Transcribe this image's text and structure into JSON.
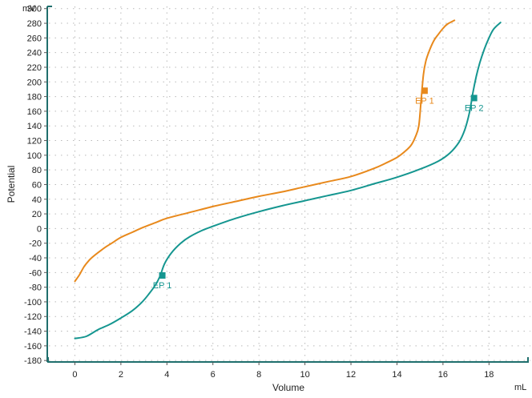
{
  "chart_data": {
    "type": "line",
    "xlabel": "Volume",
    "ylabel": "Potential",
    "x_unit": "mL",
    "y_unit": "mV",
    "xlim": [
      -1.2,
      19.8
    ],
    "ylim": [
      -182,
      303
    ],
    "x_ticks": [
      0,
      2,
      4,
      6,
      8,
      10,
      12,
      14,
      16,
      18
    ],
    "y_ticks": [
      -180,
      -160,
      -140,
      -120,
      -100,
      -80,
      -60,
      -40,
      -20,
      0,
      20,
      40,
      60,
      80,
      100,
      120,
      140,
      160,
      180,
      200,
      220,
      240,
      260,
      280,
      300
    ],
    "grid": true,
    "series": [
      {
        "color": "#e8891c",
        "x": [
          0.0,
          0.2,
          0.4,
          0.6,
          0.8,
          1.0,
          1.3,
          1.6,
          2.0,
          2.5,
          3.0,
          3.5,
          4.0,
          5.0,
          6.0,
          7.0,
          8.0,
          9.0,
          10.0,
          11.0,
          12.0,
          13.0,
          13.5,
          14.0,
          14.3,
          14.6,
          14.8,
          14.95,
          15.05,
          15.15,
          15.25,
          15.4,
          15.6,
          15.8,
          16.0,
          16.2,
          16.5
        ],
        "y": [
          -72,
          -63,
          -52,
          -44,
          -38,
          -33,
          -26,
          -20,
          -12,
          -5,
          2,
          8,
          14,
          22,
          30,
          37,
          44,
          50,
          57,
          64,
          71,
          82,
          89,
          97,
          104,
          113,
          125,
          140,
          175,
          210,
          228,
          242,
          256,
          265,
          273,
          279,
          284
        ]
      },
      {
        "color": "#159690",
        "x": [
          0.0,
          0.5,
          1.0,
          1.5,
          2.0,
          2.5,
          2.9,
          3.2,
          3.5,
          3.7,
          3.9,
          4.2,
          4.6,
          5.0,
          5.5,
          6.0,
          7.0,
          8.0,
          9.0,
          10.0,
          11.0,
          12.0,
          13.0,
          14.0,
          15.0,
          15.8,
          16.3,
          16.7,
          16.95,
          17.15,
          17.3,
          17.45,
          17.6,
          17.8,
          18.0,
          18.2,
          18.5
        ],
        "y": [
          -150,
          -147,
          -138,
          -131,
          -122,
          -112,
          -101,
          -90,
          -77,
          -65,
          -48,
          -33,
          -20,
          -11,
          -3,
          3,
          14,
          23,
          31,
          38,
          45,
          52,
          61,
          70,
          81,
          92,
          103,
          118,
          135,
          158,
          185,
          208,
          226,
          245,
          260,
          272,
          281
        ]
      }
    ],
    "annotations": [
      {
        "text": "EP 1",
        "x": 15.2,
        "y": 188,
        "series": 0
      },
      {
        "text": "EP 2",
        "x": 17.35,
        "y": 178,
        "series": 1
      },
      {
        "text": "EP 1",
        "x": 3.8,
        "y": -64,
        "series": 1
      }
    ]
  }
}
